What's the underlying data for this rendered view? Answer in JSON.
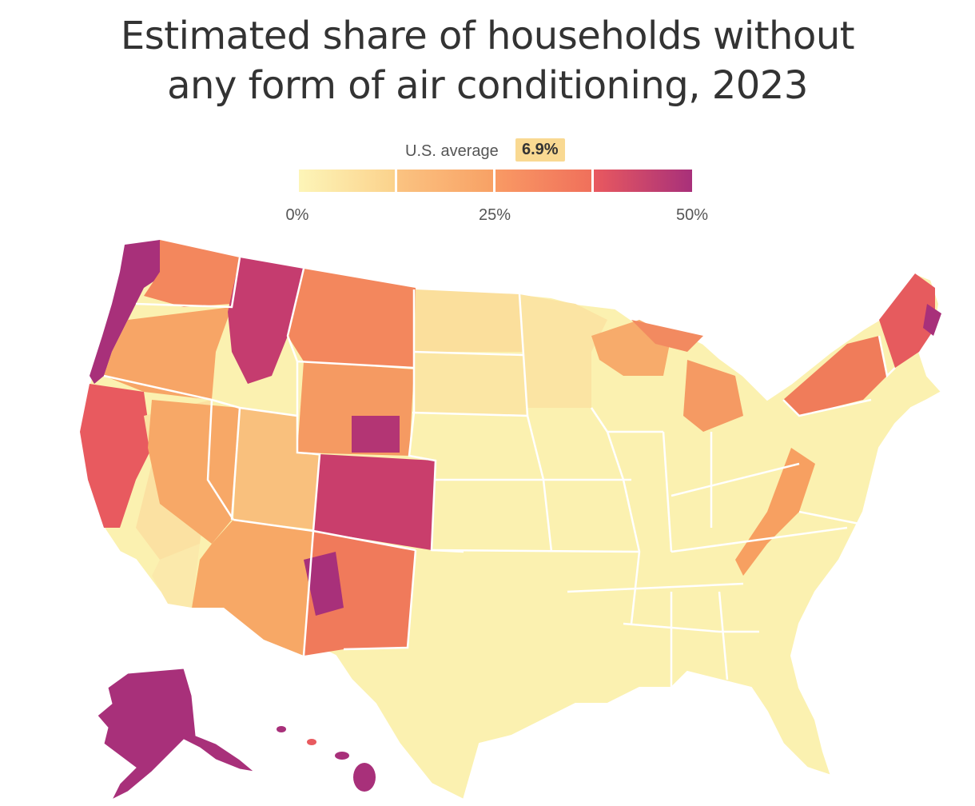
{
  "title_line1": "Estimated share of households without",
  "title_line2": "any form of air conditioning, 2023",
  "legend": {
    "avg_label": "U.S. average",
    "avg_value": "6.9%",
    "avg_value_num": 6.9,
    "ticks": [
      "0%",
      "25%",
      "50%"
    ],
    "tick_values": [
      0,
      25,
      50
    ],
    "bins": [
      {
        "from": 0,
        "to": 12.5,
        "colors": [
          "#fdf5b8",
          "#fbd28c"
        ]
      },
      {
        "from": 12.5,
        "to": 25,
        "colors": [
          "#fbc381",
          "#f8a165"
        ]
      },
      {
        "from": 25,
        "to": 37.5,
        "colors": [
          "#f99a64",
          "#f0705b"
        ]
      },
      {
        "from": 37.5,
        "to": 50,
        "colors": [
          "#e9595f",
          "#a8307a"
        ]
      }
    ]
  },
  "colors": {
    "low": "#fbf3b5",
    "mid_low": "#fbd38e",
    "mid": "#f7a666",
    "mid_high": "#f07c5a",
    "high": "#d94a67",
    "top": "#a8307a",
    "border": "#ffffff"
  }
}
